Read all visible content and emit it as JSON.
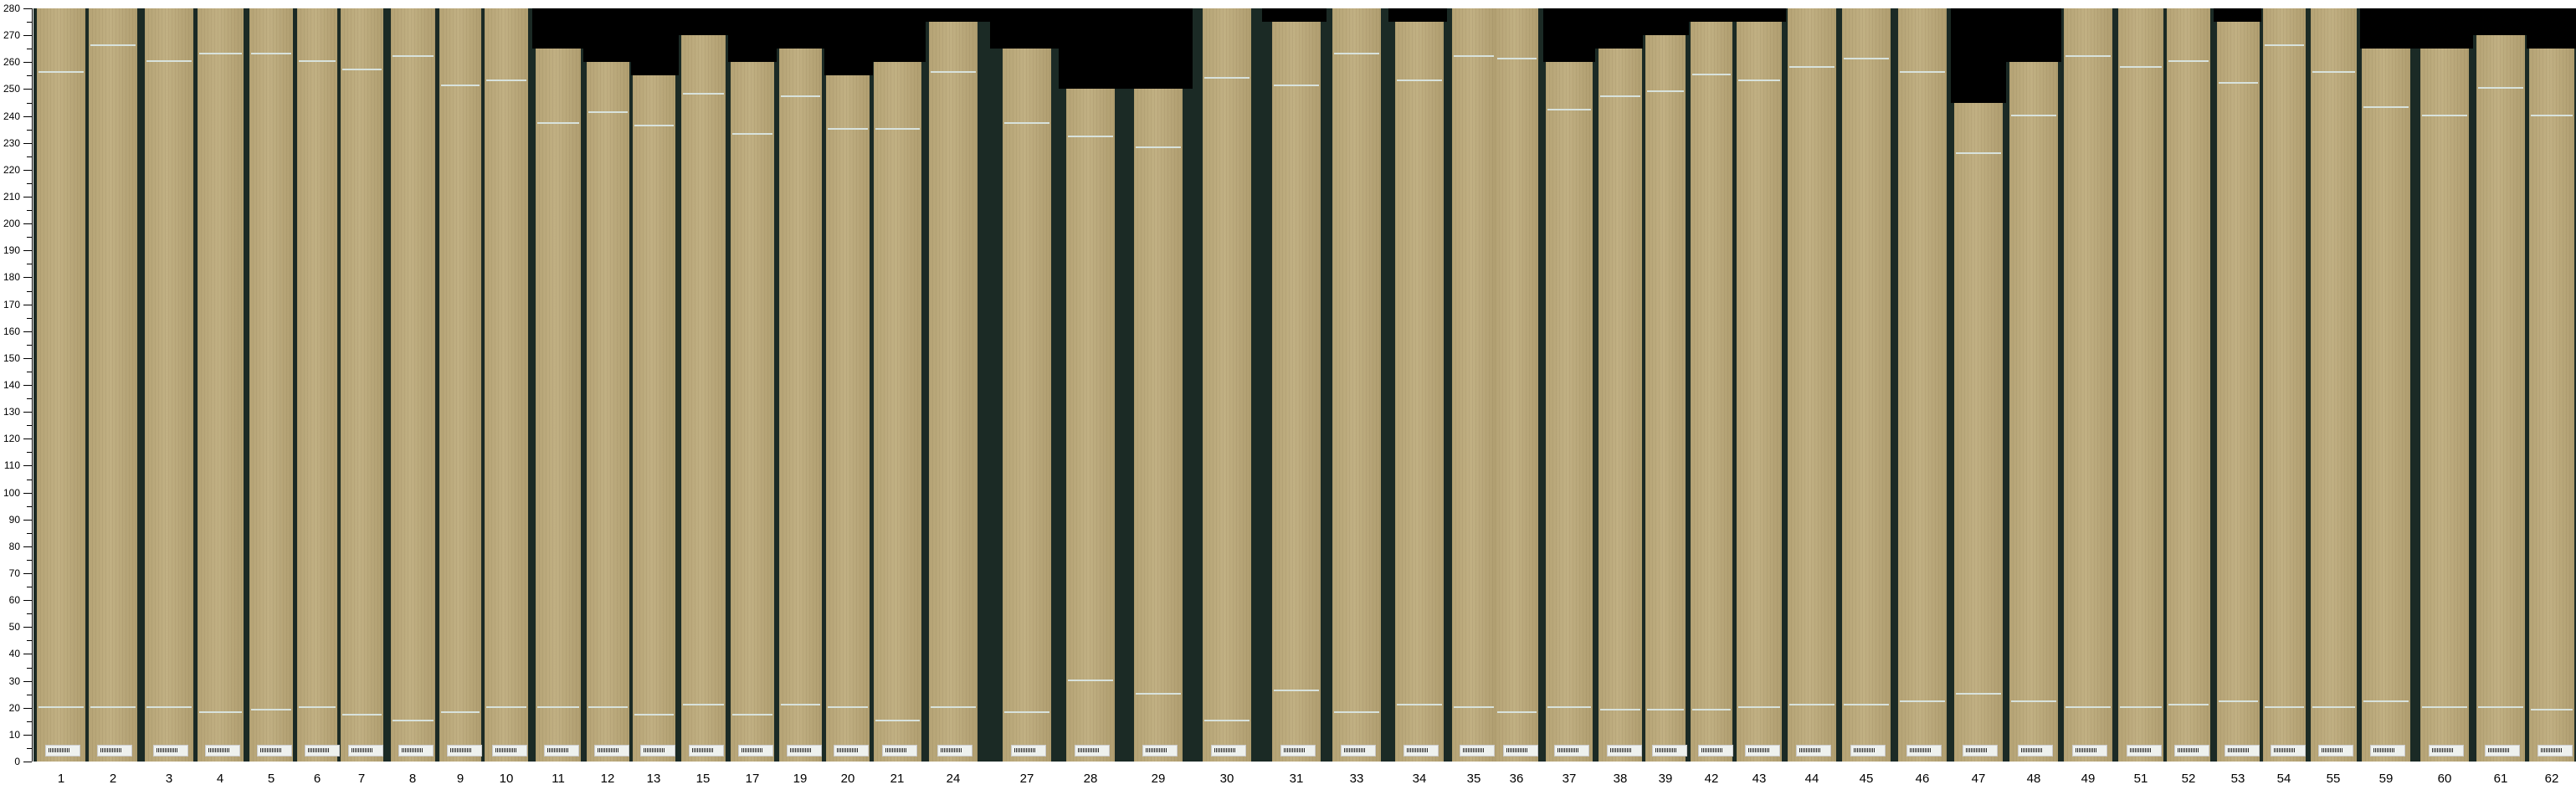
{
  "chart_data": {
    "type": "bar",
    "ylim": [
      0,
      280
    ],
    "yticks": [
      0,
      10,
      20,
      30,
      40,
      50,
      60,
      70,
      80,
      90,
      100,
      110,
      120,
      130,
      140,
      150,
      160,
      170,
      180,
      190,
      200,
      210,
      220,
      230,
      240,
      250,
      260,
      270,
      280
    ],
    "categories": [
      "1",
      "2",
      "3",
      "4",
      "5",
      "6",
      "7",
      "8",
      "9",
      "10",
      "11",
      "12",
      "13",
      "15",
      "17",
      "19",
      "20",
      "21",
      "24",
      "27",
      "28",
      "29",
      "30",
      "31",
      "33",
      "34",
      "35",
      "36",
      "37",
      "38",
      "39",
      "42",
      "43",
      "44",
      "45",
      "46",
      "47",
      "48",
      "49",
      "51",
      "52",
      "53",
      "54",
      "55",
      "59",
      "60",
      "61",
      "62"
    ],
    "values": [
      280,
      280,
      280,
      280,
      280,
      280,
      280,
      280,
      280,
      280,
      265,
      260,
      255,
      270,
      260,
      265,
      255,
      260,
      275,
      265,
      250,
      250,
      280,
      275,
      280,
      275,
      280,
      280,
      260,
      265,
      270,
      275,
      275,
      280,
      280,
      280,
      245,
      260,
      280,
      280,
      280,
      275,
      280,
      280,
      265,
      265,
      270,
      265
    ],
    "upper_mark": [
      256,
      266,
      260,
      263,
      263,
      260,
      257,
      262,
      251,
      253,
      237,
      241,
      236,
      248,
      233,
      247,
      235,
      235,
      256,
      237,
      232,
      228,
      254,
      251,
      263,
      253,
      262,
      261,
      242,
      247,
      249,
      255,
      253,
      258,
      261,
      256,
      226,
      240,
      262,
      258,
      260,
      252,
      266,
      256,
      243,
      240,
      250,
      240
    ],
    "lower_mark": [
      20,
      20,
      20,
      18,
      19,
      20,
      17,
      15,
      18,
      20,
      20,
      20,
      17,
      21,
      17,
      21,
      20,
      15,
      20,
      18,
      30,
      25,
      15,
      26,
      18,
      21,
      20,
      18,
      20,
      19,
      19,
      19,
      20,
      21,
      21,
      22,
      25,
      22,
      20,
      20,
      21,
      22,
      20,
      20,
      22,
      20,
      20,
      19
    ],
    "colors": {
      "board": "#bcab7e",
      "gap": "#1b2a25",
      "background": "#000000",
      "mark": "#d8e2dc"
    }
  }
}
